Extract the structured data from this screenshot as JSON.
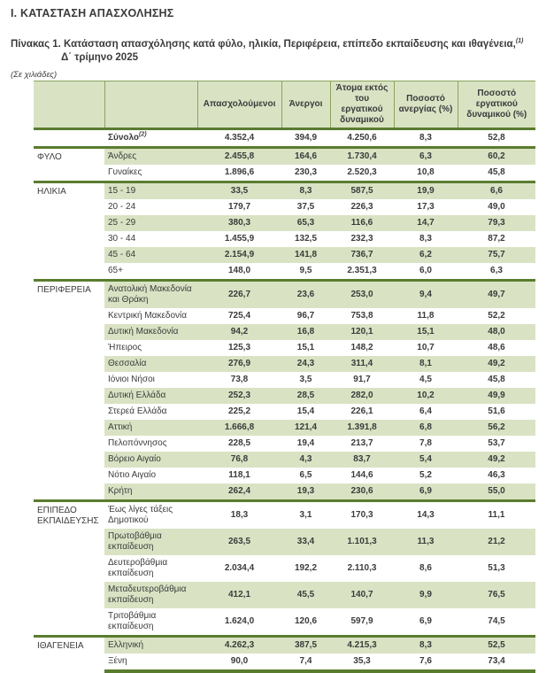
{
  "header": {
    "section_title": "Ι. ΚΑΤΑΣΤΑΣΗ ΑΠΑΣΧΟΛΗΣΗΣ",
    "table_title": "Πίνακας 1. Κατάσταση απασχόλησης κατά φύλο, ηλικία, Περιφέρεια, επίπεδο εκπαίδευσης και ιθαγένεια,",
    "table_title_sup": "(1)",
    "table_subtitle": "Δ΄ τρίμηνο 2025",
    "units_note": "(Σε χιλιάδες)"
  },
  "colors": {
    "stripe": "#d9e3c4",
    "separator": "#5a7c2f",
    "thin_border": "#8ba35c",
    "text": "#3b3b3b"
  },
  "table": {
    "columns": [
      "Απασχολούμενοι",
      "Άνεργοι",
      "Άτομα εκτός του εργατικού δυναμικού",
      "Ποσοστό ανεργίας (%)",
      "Ποσοστό εργατικού δυναμικού (%)"
    ],
    "total": {
      "label": "Σύνολο",
      "sup": "(2)",
      "values": [
        "4.352,4",
        "394,9",
        "4.250,6",
        "8,3",
        "52,8"
      ]
    },
    "sections": [
      {
        "category": "ΦΥΛΟ",
        "rows": [
          {
            "label": "Άνδρες",
            "shaded": true,
            "values": [
              "2.455,8",
              "164,6",
              "1.730,4",
              "6,3",
              "60,2"
            ]
          },
          {
            "label": "Γυναίκες",
            "shaded": false,
            "values": [
              "1.896,6",
              "230,3",
              "2.520,3",
              "10,8",
              "45,8"
            ]
          }
        ]
      },
      {
        "category": "ΗΛΙΚΙΑ",
        "rows": [
          {
            "label": "15 - 19",
            "shaded": true,
            "values": [
              "33,5",
              "8,3",
              "587,5",
              "19,9",
              "6,6"
            ]
          },
          {
            "label": "20 - 24",
            "shaded": false,
            "values": [
              "179,7",
              "37,5",
              "226,3",
              "17,3",
              "49,0"
            ]
          },
          {
            "label": "25 - 29",
            "shaded": true,
            "values": [
              "380,3",
              "65,3",
              "116,6",
              "14,7",
              "79,3"
            ]
          },
          {
            "label": "30 - 44",
            "shaded": false,
            "values": [
              "1.455,9",
              "132,5",
              "232,3",
              "8,3",
              "87,2"
            ]
          },
          {
            "label": "45 - 64",
            "shaded": true,
            "values": [
              "2.154,9",
              "141,8",
              "736,7",
              "6,2",
              "75,7"
            ]
          },
          {
            "label": "65+",
            "shaded": false,
            "values": [
              "148,0",
              "9,5",
              "2.351,3",
              "6,0",
              "6,3"
            ]
          }
        ]
      },
      {
        "category": "ΠΕΡΙΦΕΡΕΙΑ",
        "rows": [
          {
            "label": "Ανατολική Μακεδονία και Θράκη",
            "shaded": true,
            "values": [
              "226,7",
              "23,6",
              "253,0",
              "9,4",
              "49,7"
            ]
          },
          {
            "label": "Κεντρική Μακεδονία",
            "shaded": false,
            "values": [
              "725,4",
              "96,7",
              "753,8",
              "11,8",
              "52,2"
            ]
          },
          {
            "label": "Δυτική Μακεδονία",
            "shaded": true,
            "values": [
              "94,2",
              "16,8",
              "120,1",
              "15,1",
              "48,0"
            ]
          },
          {
            "label": "Ήπειρος",
            "shaded": false,
            "values": [
              "125,3",
              "15,1",
              "148,2",
              "10,7",
              "48,6"
            ]
          },
          {
            "label": "Θεσσαλία",
            "shaded": true,
            "values": [
              "276,9",
              "24,3",
              "311,4",
              "8,1",
              "49,2"
            ]
          },
          {
            "label": "Ιόνιοι Νήσοι",
            "shaded": false,
            "values": [
              "73,8",
              "3,5",
              "91,7",
              "4,5",
              "45,8"
            ]
          },
          {
            "label": "Δυτική Ελλάδα",
            "shaded": true,
            "values": [
              "252,3",
              "28,5",
              "282,0",
              "10,2",
              "49,9"
            ]
          },
          {
            "label": "Στερεά Ελλάδα",
            "shaded": false,
            "values": [
              "225,2",
              "15,4",
              "226,1",
              "6,4",
              "51,6"
            ]
          },
          {
            "label": "Αττική",
            "shaded": true,
            "values": [
              "1.666,8",
              "121,4",
              "1.391,8",
              "6,8",
              "56,2"
            ]
          },
          {
            "label": "Πελοπόννησος",
            "shaded": false,
            "values": [
              "228,5",
              "19,4",
              "213,7",
              "7,8",
              "53,7"
            ]
          },
          {
            "label": "Βόρειο Αιγαίο",
            "shaded": true,
            "values": [
              "76,8",
              "4,3",
              "83,7",
              "5,4",
              "49,2"
            ]
          },
          {
            "label": "Νότιο Αιγαίο",
            "shaded": false,
            "values": [
              "118,1",
              "6,5",
              "144,6",
              "5,2",
              "46,3"
            ]
          },
          {
            "label": "Κρήτη",
            "shaded": true,
            "values": [
              "262,4",
              "19,3",
              "230,6",
              "6,9",
              "55,0"
            ]
          }
        ]
      },
      {
        "category": "ΕΠΙΠΕΔΟ ΕΚΠΑΙΔΕΥΣΗΣ",
        "rows": [
          {
            "label": "Έως λίγες τάξεις Δημοτικού",
            "shaded": false,
            "values": [
              "18,3",
              "3,1",
              "170,3",
              "14,3",
              "11,1"
            ]
          },
          {
            "label": "Πρωτοβάθμια εκπαίδευση",
            "shaded": true,
            "values": [
              "263,5",
              "33,4",
              "1.101,3",
              "11,3",
              "21,2"
            ]
          },
          {
            "label": "Δευτεροβάθμια εκπαίδευση",
            "shaded": false,
            "values": [
              "2.034,4",
              "192,2",
              "2.110,3",
              "8,6",
              "51,3"
            ]
          },
          {
            "label": "Μεταδευτεροβάθμια εκπαίδευση",
            "shaded": true,
            "values": [
              "412,1",
              "45,5",
              "140,7",
              "9,9",
              "76,5"
            ]
          },
          {
            "label": "Τριτοβάθμια εκπαίδευση",
            "shaded": false,
            "values": [
              "1.624,0",
              "120,6",
              "597,9",
              "6,9",
              "74,5"
            ]
          }
        ]
      },
      {
        "category": "ΙΘΑΓΕΝΕΙΑ",
        "rows": [
          {
            "label": "Ελληνική",
            "shaded": true,
            "values": [
              "4.262,3",
              "387,5",
              "4.215,3",
              "8,3",
              "52,5"
            ]
          },
          {
            "label": "Ξένη",
            "shaded": false,
            "values": [
              "90,0",
              "7,4",
              "35,3",
              "7,6",
              "73,4"
            ]
          }
        ]
      }
    ]
  }
}
